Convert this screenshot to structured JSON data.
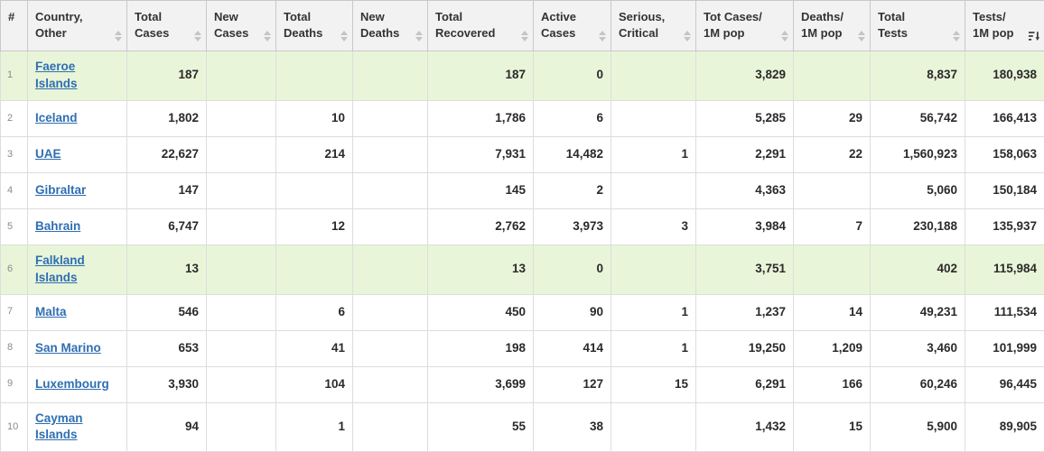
{
  "table": {
    "sorted_by": "tests_1m",
    "sort_direction": "desc",
    "columns": [
      {
        "key": "rank",
        "label": "#",
        "sortable": false,
        "align": "left"
      },
      {
        "key": "country",
        "label": "Country,\nOther",
        "sortable": true,
        "align": "left"
      },
      {
        "key": "total_cases",
        "label": "Total\nCases",
        "sortable": true,
        "align": "right"
      },
      {
        "key": "new_cases",
        "label": "New\nCases",
        "sortable": true,
        "align": "right"
      },
      {
        "key": "total_deaths",
        "label": "Total\nDeaths",
        "sortable": true,
        "align": "right"
      },
      {
        "key": "new_deaths",
        "label": "New\nDeaths",
        "sortable": true,
        "align": "right"
      },
      {
        "key": "total_recovered",
        "label": "Total\nRecovered",
        "sortable": true,
        "align": "right"
      },
      {
        "key": "active_cases",
        "label": "Active\nCases",
        "sortable": true,
        "align": "right"
      },
      {
        "key": "serious_critical",
        "label": "Serious,\nCritical",
        "sortable": true,
        "align": "right"
      },
      {
        "key": "tot_cases_1m",
        "label": "Tot Cases/\n1M pop",
        "sortable": true,
        "align": "right"
      },
      {
        "key": "deaths_1m",
        "label": "Deaths/\n1M pop",
        "sortable": true,
        "align": "right"
      },
      {
        "key": "total_tests",
        "label": "Total\nTests",
        "sortable": true,
        "align": "right"
      },
      {
        "key": "tests_1m",
        "label": "Tests/\n1M pop",
        "sortable": true,
        "align": "right"
      }
    ],
    "rows": [
      {
        "rank": "1",
        "country": "Faeroe Islands",
        "total_cases": "187",
        "new_cases": "",
        "total_deaths": "",
        "new_deaths": "",
        "total_recovered": "187",
        "active_cases": "0",
        "serious_critical": "",
        "tot_cases_1m": "3,829",
        "deaths_1m": "",
        "total_tests": "8,837",
        "tests_1m": "180,938",
        "highlight": true
      },
      {
        "rank": "2",
        "country": "Iceland",
        "total_cases": "1,802",
        "new_cases": "",
        "total_deaths": "10",
        "new_deaths": "",
        "total_recovered": "1,786",
        "active_cases": "6",
        "serious_critical": "",
        "tot_cases_1m": "5,285",
        "deaths_1m": "29",
        "total_tests": "56,742",
        "tests_1m": "166,413",
        "highlight": false
      },
      {
        "rank": "3",
        "country": "UAE",
        "total_cases": "22,627",
        "new_cases": "",
        "total_deaths": "214",
        "new_deaths": "",
        "total_recovered": "7,931",
        "active_cases": "14,482",
        "serious_critical": "1",
        "tot_cases_1m": "2,291",
        "deaths_1m": "22",
        "total_tests": "1,560,923",
        "tests_1m": "158,063",
        "highlight": false
      },
      {
        "rank": "4",
        "country": "Gibraltar",
        "total_cases": "147",
        "new_cases": "",
        "total_deaths": "",
        "new_deaths": "",
        "total_recovered": "145",
        "active_cases": "2",
        "serious_critical": "",
        "tot_cases_1m": "4,363",
        "deaths_1m": "",
        "total_tests": "5,060",
        "tests_1m": "150,184",
        "highlight": false
      },
      {
        "rank": "5",
        "country": "Bahrain",
        "total_cases": "6,747",
        "new_cases": "",
        "total_deaths": "12",
        "new_deaths": "",
        "total_recovered": "2,762",
        "active_cases": "3,973",
        "serious_critical": "3",
        "tot_cases_1m": "3,984",
        "deaths_1m": "7",
        "total_tests": "230,188",
        "tests_1m": "135,937",
        "highlight": false
      },
      {
        "rank": "6",
        "country": "Falkland Islands",
        "total_cases": "13",
        "new_cases": "",
        "total_deaths": "",
        "new_deaths": "",
        "total_recovered": "13",
        "active_cases": "0",
        "serious_critical": "",
        "tot_cases_1m": "3,751",
        "deaths_1m": "",
        "total_tests": "402",
        "tests_1m": "115,984",
        "highlight": true
      },
      {
        "rank": "7",
        "country": "Malta",
        "total_cases": "546",
        "new_cases": "",
        "total_deaths": "6",
        "new_deaths": "",
        "total_recovered": "450",
        "active_cases": "90",
        "serious_critical": "1",
        "tot_cases_1m": "1,237",
        "deaths_1m": "14",
        "total_tests": "49,231",
        "tests_1m": "111,534",
        "highlight": false
      },
      {
        "rank": "8",
        "country": "San Marino",
        "total_cases": "653",
        "new_cases": "",
        "total_deaths": "41",
        "new_deaths": "",
        "total_recovered": "198",
        "active_cases": "414",
        "serious_critical": "1",
        "tot_cases_1m": "19,250",
        "deaths_1m": "1,209",
        "total_tests": "3,460",
        "tests_1m": "101,999",
        "highlight": false
      },
      {
        "rank": "9",
        "country": "Luxembourg",
        "total_cases": "3,930",
        "new_cases": "",
        "total_deaths": "104",
        "new_deaths": "",
        "total_recovered": "3,699",
        "active_cases": "127",
        "serious_critical": "15",
        "tot_cases_1m": "6,291",
        "deaths_1m": "166",
        "total_tests": "60,246",
        "tests_1m": "96,445",
        "highlight": false
      },
      {
        "rank": "10",
        "country": "Cayman Islands",
        "total_cases": "94",
        "new_cases": "",
        "total_deaths": "1",
        "new_deaths": "",
        "total_recovered": "55",
        "active_cases": "38",
        "serious_critical": "",
        "tot_cases_1m": "1,432",
        "deaths_1m": "15",
        "total_tests": "5,900",
        "tests_1m": "89,905",
        "highlight": false
      }
    ]
  },
  "colors": {
    "header_bg": "#f2f2f2",
    "highlight_row_bg": "#e9f5d9",
    "link": "#2f6fb2",
    "border": "#dddddd",
    "sort_icon_inactive": "#c4c4c4",
    "sort_icon_active": "#3a3a3a"
  }
}
